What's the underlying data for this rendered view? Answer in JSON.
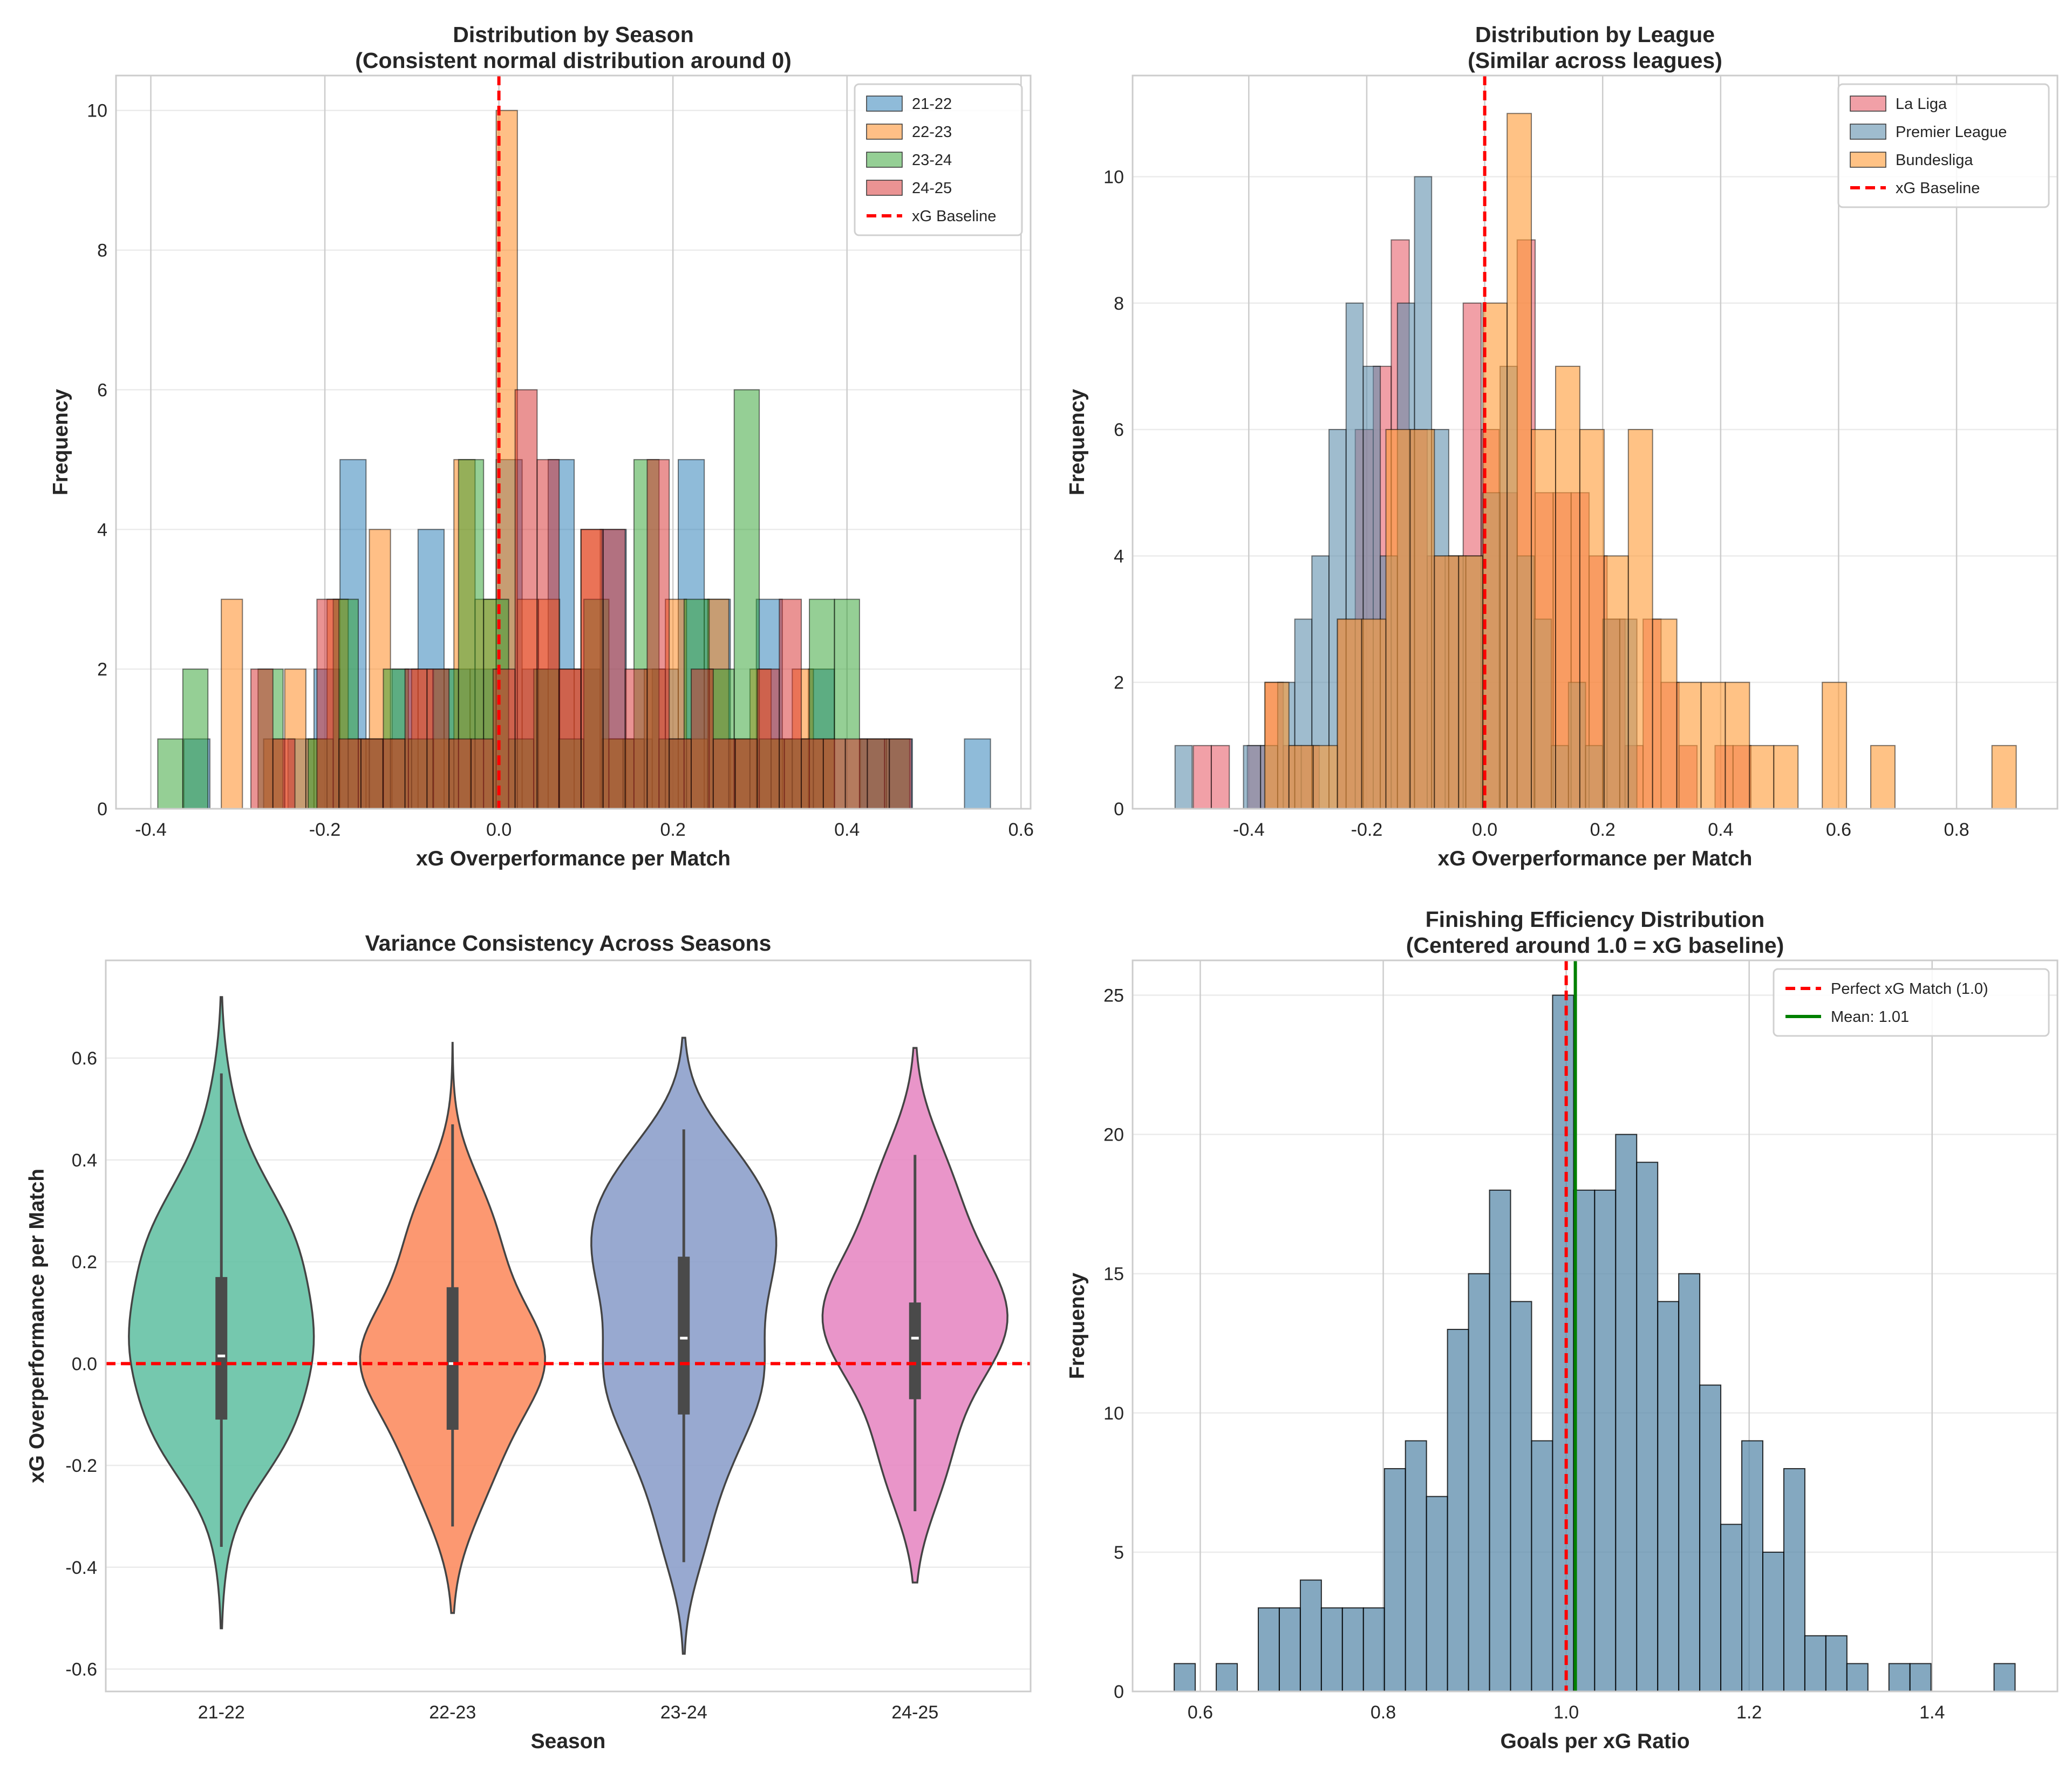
{
  "chart_data": [
    {
      "type": "bar",
      "title": "Distribution by Season",
      "subtitle": "(Consistent normal distribution around 0)",
      "xlabel": "xG Overperformance per Match",
      "ylabel": "Frequency",
      "xlim": [
        -0.44,
        0.611
      ],
      "ylim": [
        0,
        10.5
      ],
      "xticks": [
        "-0.4",
        "-0.2",
        "0.0",
        "0.2",
        "0.4",
        "0.6"
      ],
      "yticks": [
        "0",
        "2",
        "4",
        "6",
        "8",
        "10"
      ],
      "grid": true,
      "legend": "top-right",
      "series": [
        {
          "name": "21-22",
          "color": "#1f77b4",
          "bin_start": -0.362,
          "bin_width": 0.0299,
          "counts": [
            1,
            0,
            0,
            0,
            1,
            2,
            5,
            1,
            2,
            4,
            2,
            2,
            5,
            2,
            5,
            2,
            4,
            1,
            2,
            5,
            3,
            1,
            3,
            1,
            2,
            0,
            1,
            1,
            0,
            0,
            1
          ]
        },
        {
          "name": "22-23",
          "color": "#ff7f0e",
          "bin_start": -0.319,
          "bin_width": 0.0243,
          "counts": [
            3,
            0,
            1,
            2,
            1,
            3,
            1,
            4,
            1,
            2,
            1,
            5,
            3,
            10,
            3,
            3,
            2,
            4,
            1,
            1,
            2,
            3,
            1,
            3,
            1,
            2,
            1,
            2,
            1
          ]
        },
        {
          "name": "23-24",
          "color": "#2ca02c",
          "bin_start": -0.392,
          "bin_width": 0.0288,
          "counts": [
            1,
            2,
            0,
            0,
            2,
            0,
            1,
            3,
            1,
            2,
            1,
            2,
            5,
            3,
            1,
            2,
            1,
            3,
            1,
            5,
            1,
            3,
            2,
            6,
            1,
            1,
            3,
            3,
            1,
            1
          ]
        },
        {
          "name": "24-25",
          "color": "#d62728",
          "bin_start": -0.285,
          "bin_width": 0.0253,
          "counts": [
            2,
            1,
            0,
            3,
            1,
            1,
            1,
            2,
            2,
            1,
            1,
            2,
            6,
            5,
            2,
            4,
            4,
            2,
            5,
            1,
            2,
            1,
            1,
            2,
            3,
            1,
            1,
            1,
            1,
            1
          ]
        }
      ],
      "reference_line": {
        "name": "xG Baseline",
        "x": 0,
        "color": "#ff0000",
        "style": "dashed"
      }
    },
    {
      "type": "bar",
      "title": "Distribution by League",
      "subtitle": "(Similar across leagues)",
      "xlabel": "xG Overperformance per Match",
      "ylabel": "Frequency",
      "xlim": [
        -0.597,
        0.971
      ],
      "ylim": [
        0,
        11.6
      ],
      "xticks": [
        "-0.4",
        "-0.2",
        "0.0",
        "0.2",
        "0.4",
        "0.6",
        "0.8"
      ],
      "yticks": [
        "0",
        "2",
        "4",
        "6",
        "8",
        "10"
      ],
      "grid": true,
      "legend": "top-right",
      "series": [
        {
          "name": "La Liga",
          "color": "#e8606c",
          "bin_start": -0.494,
          "bin_width": 0.0305,
          "counts": [
            1,
            1,
            0,
            1,
            2,
            1,
            1,
            0,
            3,
            6,
            7,
            9,
            6,
            4,
            4,
            8,
            6,
            5,
            9,
            5,
            5,
            5,
            4,
            3,
            1,
            3,
            2,
            1,
            0,
            1,
            1
          ]
        },
        {
          "name": "Premier League",
          "color": "#5f8fae",
          "bin_start": -0.525,
          "bin_width": 0.029,
          "counts": [
            1,
            0,
            0,
            0,
            1,
            1,
            2,
            3,
            4,
            6,
            8,
            7,
            4,
            8,
            10,
            6,
            4,
            4,
            5,
            7,
            4,
            3,
            1,
            2,
            1,
            3,
            3,
            0,
            0,
            0,
            0,
            0
          ]
        },
        {
          "name": "Bundesliga",
          "color": "#ff9a33",
          "bin_start": -0.373,
          "bin_width": 0.0411,
          "counts": [
            2,
            1,
            1,
            3,
            3,
            6,
            6,
            4,
            4,
            8,
            11,
            6,
            7,
            6,
            4,
            6,
            3,
            2,
            2,
            2,
            1,
            1,
            0,
            2,
            0,
            1,
            0,
            0,
            0,
            0,
            1
          ]
        }
      ],
      "reference_line": {
        "name": "xG Baseline",
        "x": 0,
        "color": "#ff0000",
        "style": "dashed"
      }
    },
    {
      "type": "violin",
      "title": "Variance Consistency Across Seasons",
      "xlabel": "Season",
      "ylabel": "xG Overperformance per Match",
      "ylim": [
        -0.644,
        0.792
      ],
      "yticks": [
        "-0.6",
        "-0.4",
        "-0.2",
        "0.0",
        "0.2",
        "0.4",
        "0.6"
      ],
      "grid": true,
      "categories": [
        "21-22",
        "22-23",
        "23-24",
        "24-25"
      ],
      "colors": [
        "#66c2a5",
        "#fc8d62",
        "#8da0cb",
        "#e78ac3"
      ],
      "stats": [
        {
          "min_extent": -0.52,
          "max_extent": 0.72,
          "whisker_low": -0.36,
          "whisker_high": 0.57,
          "q1": -0.11,
          "median": 0.015,
          "q3": 0.17
        },
        {
          "min_extent": -0.49,
          "max_extent": 0.63,
          "whisker_low": -0.32,
          "whisker_high": 0.47,
          "q1": -0.13,
          "median": 0.0,
          "q3": 0.15
        },
        {
          "min_extent": -0.57,
          "max_extent": 0.64,
          "whisker_low": -0.39,
          "whisker_high": 0.46,
          "q1": -0.1,
          "median": 0.05,
          "q3": 0.21
        },
        {
          "min_extent": -0.43,
          "max_extent": 0.62,
          "whisker_low": -0.29,
          "whisker_high": 0.41,
          "q1": -0.07,
          "median": 0.05,
          "q3": 0.12
        }
      ],
      "reference_line": {
        "y": 0,
        "color": "#ff0000",
        "style": "dashed"
      }
    },
    {
      "type": "bar",
      "title": "Finishing Efficiency Distribution",
      "subtitle": "(Centered around 1.0 = xG baseline)",
      "xlabel": "Goals per xG Ratio",
      "ylabel": "Frequency",
      "xlim": [
        0.526,
        1.537
      ],
      "ylim": [
        0,
        26.25
      ],
      "xticks": [
        "0.6",
        "0.8",
        "1.0",
        "1.2",
        "1.4"
      ],
      "yticks": [
        "0",
        "5",
        "10",
        "15",
        "20",
        "25"
      ],
      "grid": true,
      "legend": "top-right",
      "series": [
        {
          "color": "#5b8bab",
          "bin_start": 0.5715,
          "bin_width": 0.02298,
          "counts": [
            1,
            0,
            1,
            0,
            3,
            3,
            4,
            3,
            3,
            3,
            8,
            9,
            7,
            13,
            15,
            18,
            14,
            9,
            25,
            18,
            18,
            20,
            19,
            14,
            15,
            11,
            6,
            9,
            5,
            8,
            2,
            2,
            1,
            0,
            1,
            1,
            0,
            0,
            0,
            1
          ]
        }
      ],
      "reference_lines": [
        {
          "name": "Perfect xG Match (1.0)",
          "x": 1.0,
          "color": "#ff0000",
          "style": "dashed"
        },
        {
          "name": "Mean: 1.01",
          "x": 1.01,
          "color": "#008000",
          "style": "solid"
        }
      ]
    }
  ]
}
